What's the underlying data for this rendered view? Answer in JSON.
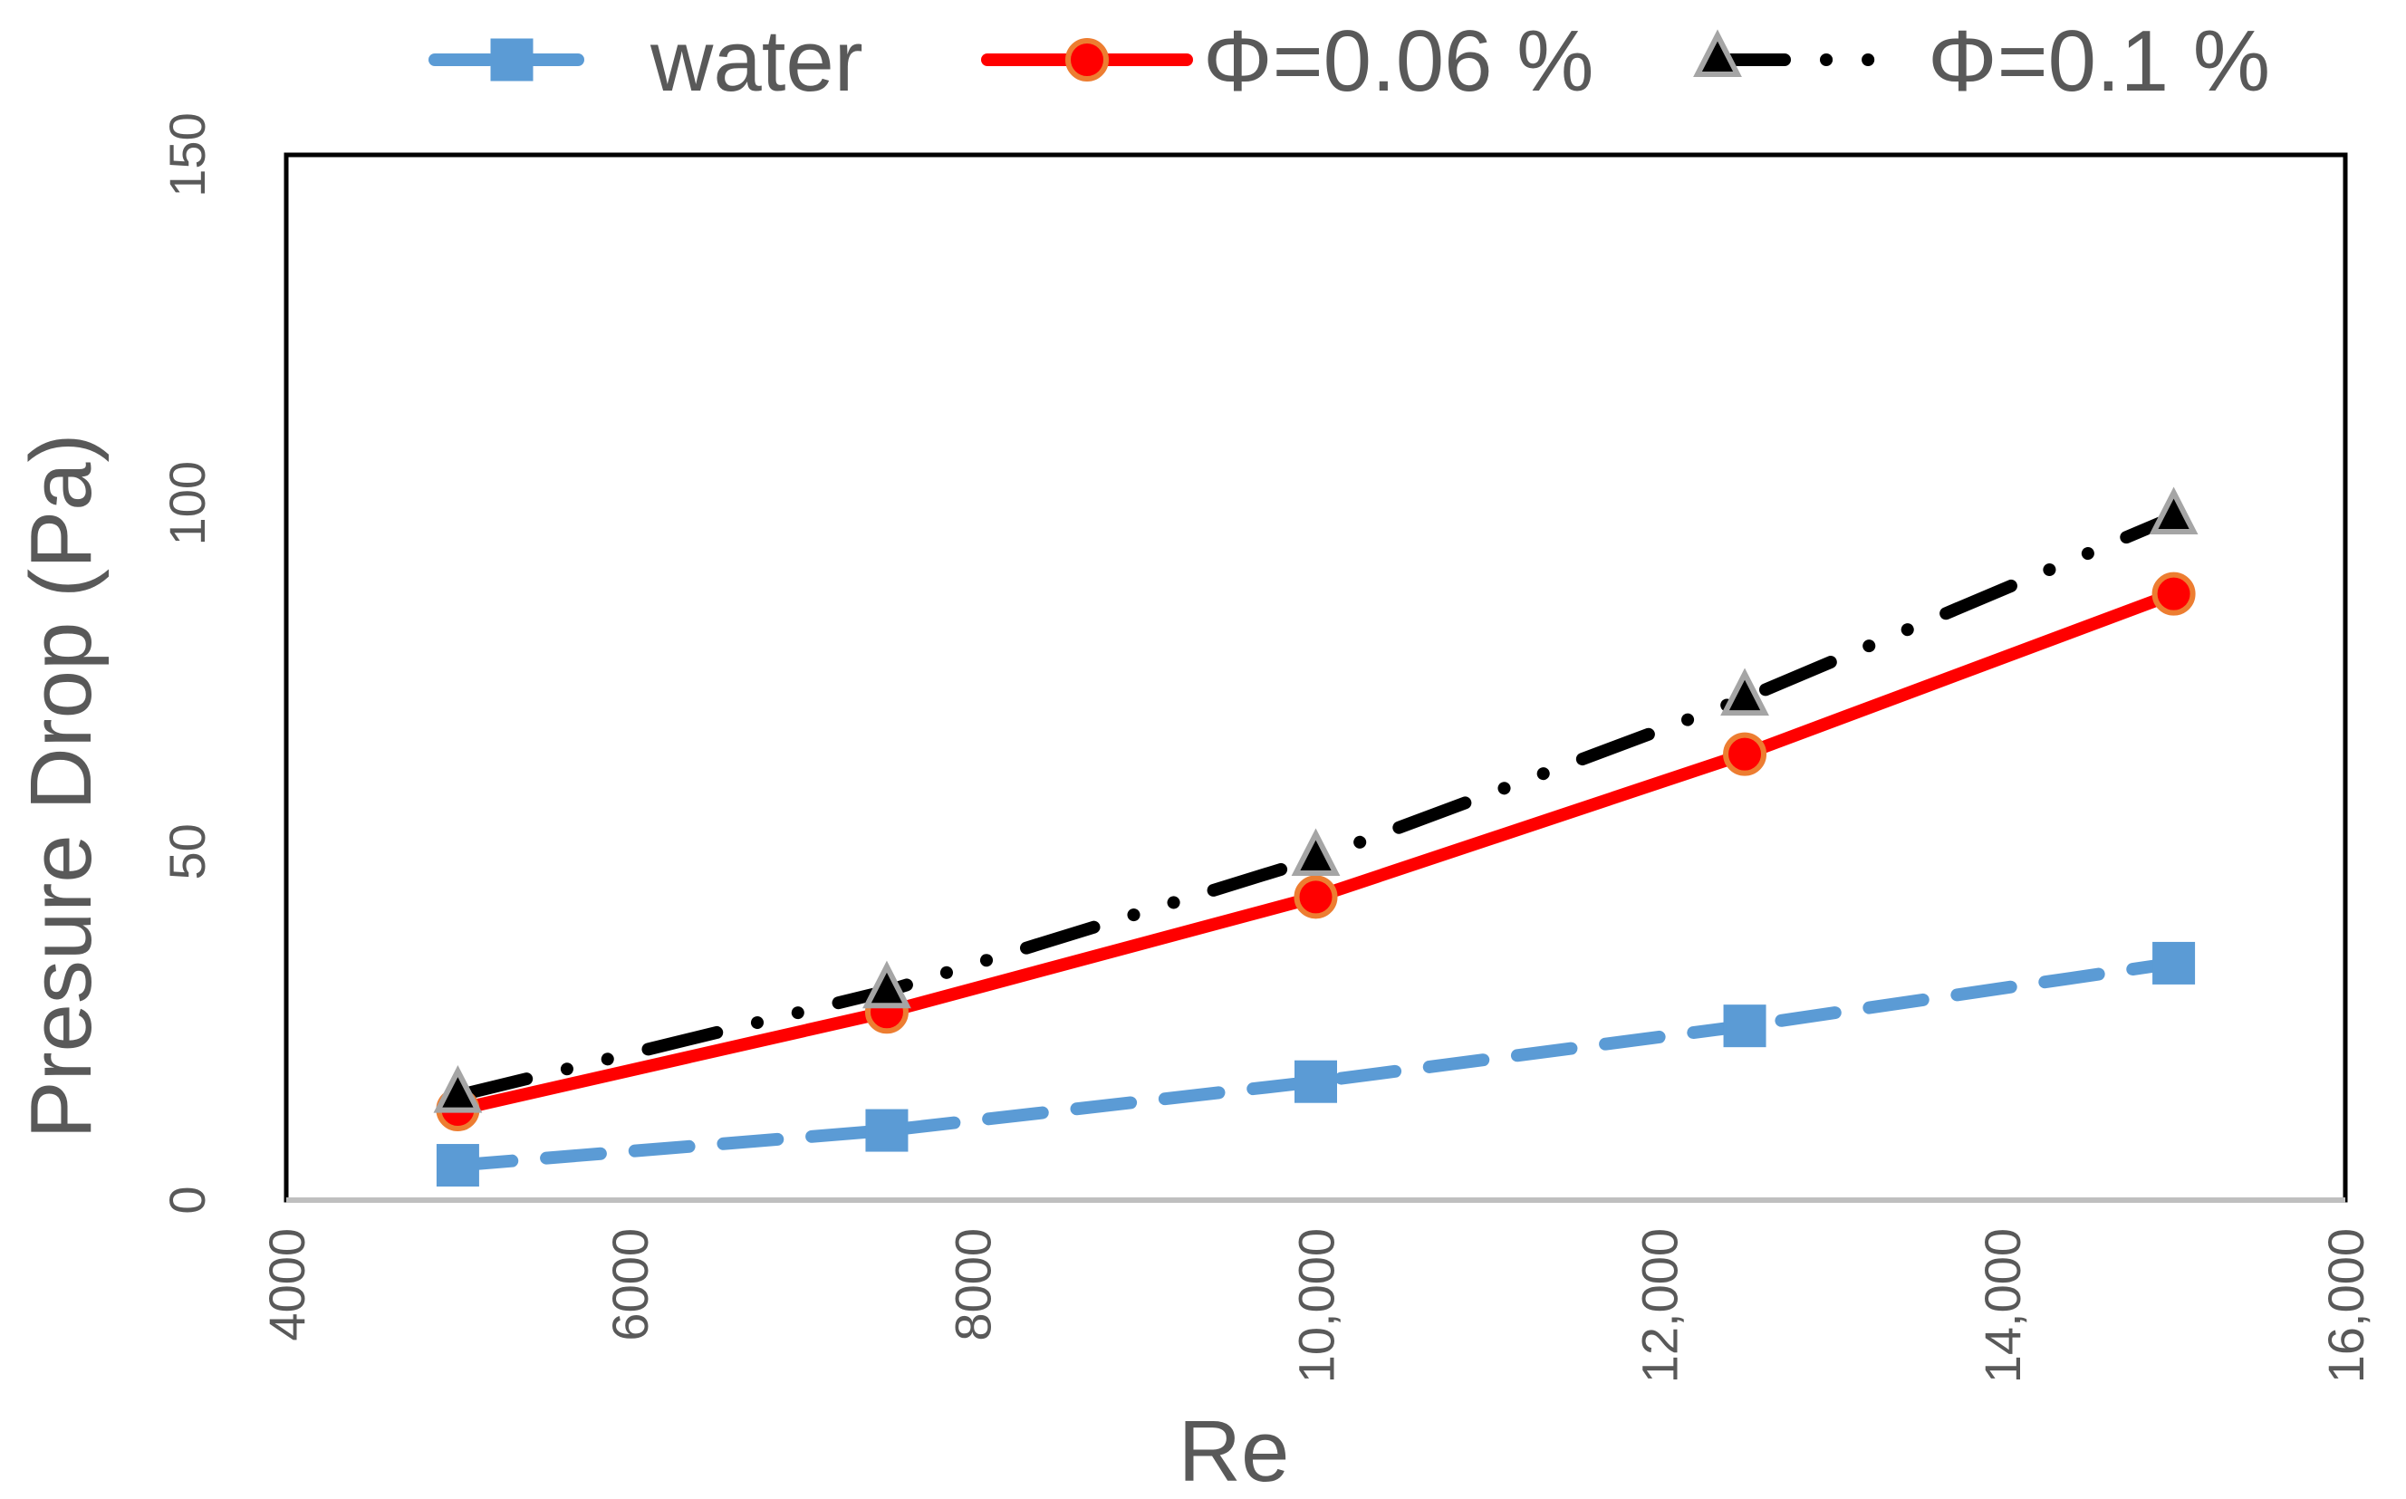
{
  "chart_data": {
    "type": "line",
    "title": "",
    "xlabel": "Re",
    "ylabel": "Presure  Drop (Pa)",
    "xlim": [
      4000,
      16000
    ],
    "ylim": [
      0,
      150
    ],
    "x_ticks": [
      4000,
      6000,
      8000,
      10000,
      12000,
      14000,
      16000
    ],
    "x_tick_labels": [
      "4000",
      "6000",
      "8000",
      "10,000",
      "12,000",
      "14,000",
      "16,000"
    ],
    "y_ticks": [
      0,
      50,
      100,
      150
    ],
    "y_tick_labels": [
      "0",
      "50",
      "100",
      "150"
    ],
    "grid": false,
    "legend_position": "top",
    "series": [
      {
        "name": "water",
        "style": "dashed",
        "marker": "square",
        "color": "#5B9BD5",
        "x": [
          5000,
          7500,
          10000,
          12500,
          15000
        ],
        "y": [
          5,
          10,
          17,
          25,
          34
        ]
      },
      {
        "name": "Φ=0.06 %",
        "style": "solid",
        "marker": "circle",
        "color": "#FF0000",
        "marker_edge": "#ED7D31",
        "x": [
          5000,
          7500,
          10000,
          12500,
          15000
        ],
        "y": [
          13,
          27,
          43.5,
          64,
          87
        ]
      },
      {
        "name": "Φ=0.1 %",
        "style": "dash-dot-dot",
        "marker": "triangle",
        "color": "#000000",
        "marker_edge": "#A5A5A5",
        "x": [
          5000,
          7500,
          10000,
          12500,
          15000
        ],
        "y": [
          15,
          30,
          49,
          72,
          98
        ]
      }
    ]
  }
}
